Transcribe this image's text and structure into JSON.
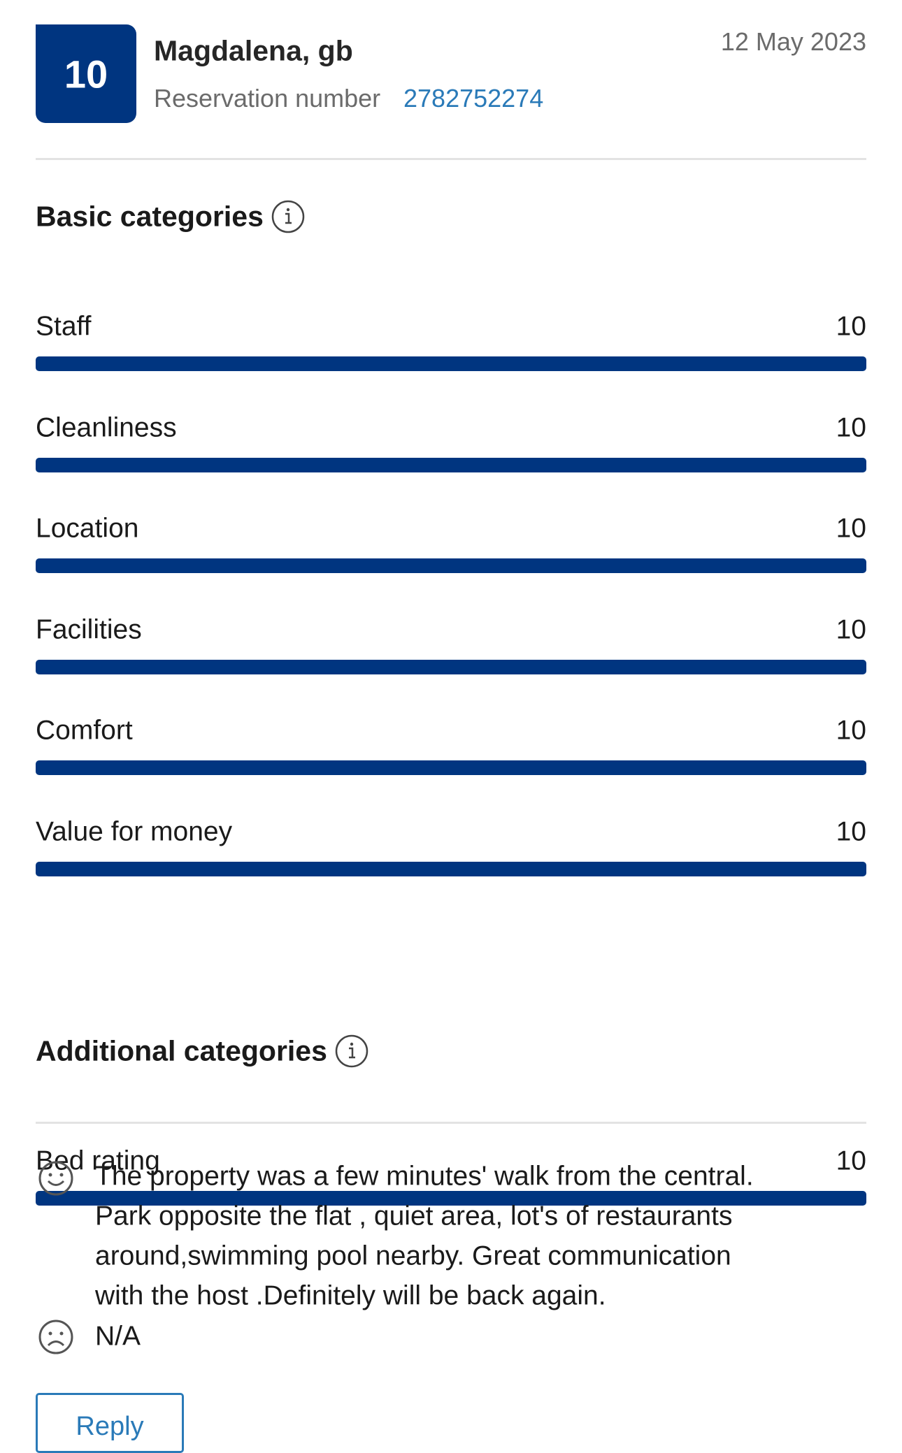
{
  "review": {
    "score": "10",
    "guest": "Magdalena, gb",
    "reservation_label": "Reservation number",
    "reservation_number": "2782752274",
    "date": "12 May 2023",
    "sections": [
      {
        "title": "Basic categories",
        "items": [
          {
            "name": "Staff",
            "value": 10
          },
          {
            "name": "Cleanliness",
            "value": 10
          },
          {
            "name": "Location",
            "value": 10
          },
          {
            "name": "Facilities",
            "value": 10
          },
          {
            "name": "Comfort",
            "value": 10
          },
          {
            "name": "Value for money",
            "value": 10
          }
        ]
      },
      {
        "title": "Additional categories",
        "items": [
          {
            "name": "Bed rating",
            "value": 10
          }
        ]
      }
    ],
    "positive_lines": [
      "The property was a few minutes' walk from the central.",
      "Park opposite the flat , quiet area, lot's of restaurants",
      "around,swimming pool nearby. Great communication",
      "with the host .Definitely will be back again."
    ],
    "negative": "N/A",
    "reply": "Reply"
  }
}
